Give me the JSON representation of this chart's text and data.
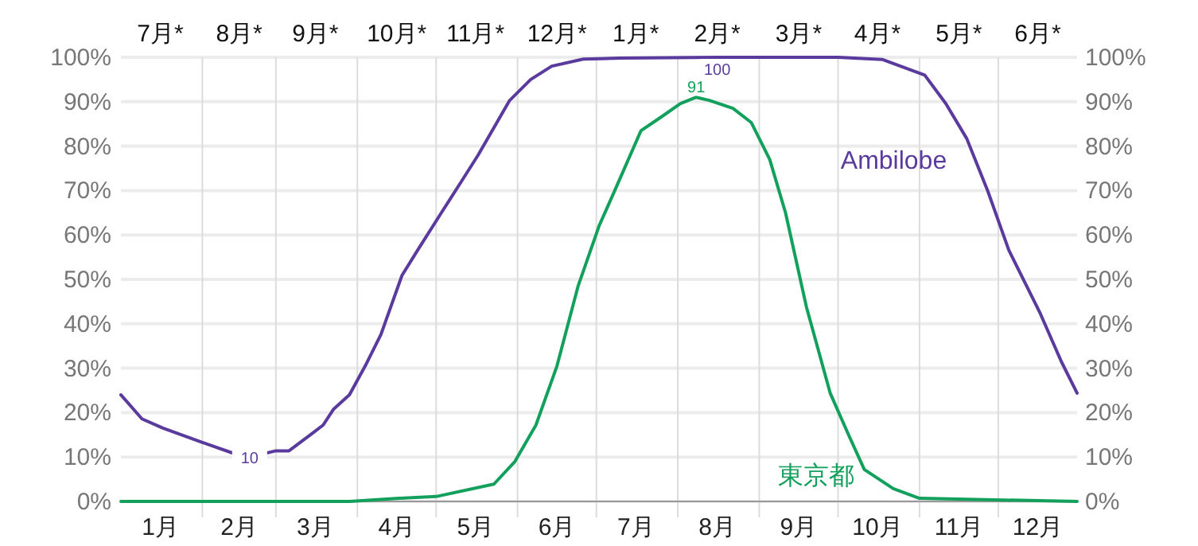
{
  "chart_data": {
    "type": "line",
    "xlim": [
      "--01-01",
      "--12-31"
    ],
    "xticks": [
      {
        "value": "--02-01",
        "label": null
      },
      {
        "value": "--03-01",
        "label": null
      },
      {
        "value": "--04-01",
        "label": null
      },
      {
        "value": "--05-01",
        "label": null
      },
      {
        "value": "--06-01",
        "label": null
      },
      {
        "value": "--07-01",
        "label": null
      },
      {
        "value": "--08-01",
        "label": null
      },
      {
        "value": "--09-01",
        "label": null
      },
      {
        "value": "--10-01",
        "label": null
      },
      {
        "value": "--11-01",
        "label": null
      },
      {
        "value": "--12-01",
        "label": null
      },
      {
        "value": "--01-16",
        "label": "1月"
      },
      {
        "value": "--02-15",
        "label": "2月"
      },
      {
        "value": "--03-16",
        "label": "3月"
      },
      {
        "value": "--04-16",
        "label": "4月"
      },
      {
        "value": "--05-16",
        "label": "5月"
      },
      {
        "value": "--06-16",
        "label": "6月"
      },
      {
        "value": "--07-16",
        "label": "7月"
      },
      {
        "value": "--08-16",
        "label": "8月"
      },
      {
        "value": "--09-16",
        "label": "9月"
      },
      {
        "value": "--10-16",
        "label": "10月"
      },
      {
        "value": "--11-16",
        "label": "11月"
      },
      {
        "value": "--12-16",
        "label": "12月"
      }
    ],
    "x2lim": [
      "--01-01",
      "--12-31"
    ],
    "x2ticks": [
      {
        "value": "--01-16",
        "label": "7月*"
      },
      {
        "value": "--02-15",
        "label": "8月*"
      },
      {
        "value": "--03-16",
        "label": "9月*"
      },
      {
        "value": "--04-16",
        "label": "10月*"
      },
      {
        "value": "--05-16",
        "label": "11月*"
      },
      {
        "value": "--06-16",
        "label": "12月*"
      },
      {
        "value": "--07-16",
        "label": "1月*"
      },
      {
        "value": "--08-16",
        "label": "2月*"
      },
      {
        "value": "--09-16",
        "label": "3月*"
      },
      {
        "value": "--10-16",
        "label": "4月*"
      },
      {
        "value": "--11-16",
        "label": "5月*"
      },
      {
        "value": "--12-16",
        "label": "6月*"
      }
    ],
    "ylim": [
      0,
      100
    ],
    "yticks": [
      {
        "value": 0,
        "label": "0%"
      },
      {
        "value": 10,
        "label": "10%"
      },
      {
        "value": 20,
        "label": "20%"
      },
      {
        "value": 30,
        "label": "30%"
      },
      {
        "value": 40,
        "label": "40%"
      },
      {
        "value": 50,
        "label": "50%"
      },
      {
        "value": 60,
        "label": "60%"
      },
      {
        "value": 70,
        "label": "70%"
      },
      {
        "value": 80,
        "label": "80%"
      },
      {
        "value": 90,
        "label": "90%"
      },
      {
        "value": 100,
        "label": "100%"
      }
    ],
    "y2lim": [
      0,
      100
    ],
    "y2ticks": [
      {
        "value": 0,
        "label": "0%"
      },
      {
        "value": 10,
        "label": "10%"
      },
      {
        "value": 20,
        "label": "20%"
      },
      {
        "value": 30,
        "label": "30%"
      },
      {
        "value": 40,
        "label": "40%"
      },
      {
        "value": 50,
        "label": "50%"
      },
      {
        "value": 60,
        "label": "60%"
      },
      {
        "value": 70,
        "label": "70%"
      },
      {
        "value": 80,
        "label": "80%"
      },
      {
        "value": 90,
        "label": "90%"
      },
      {
        "value": 100,
        "label": "100%"
      }
    ],
    "grid": true,
    "series": [
      {
        "name": "Ambilobe",
        "color": "#5b3a9e",
        "x": [
          "--01-01",
          "--01-09",
          "--01-17",
          "--02-01",
          "--02-13",
          "--02-19",
          "--03-01",
          "--03-06",
          "--03-15",
          "--03-19",
          "--03-23",
          "--03-29",
          "--04-04",
          "--04-10",
          "--04-18",
          "--04-24",
          "--05-03",
          "--05-11",
          "--05-17",
          "--05-29",
          "--06-06",
          "--06-14",
          "--06-26",
          "--07-10",
          "--08-16",
          "--10-01",
          "--10-18",
          "--11-03",
          "--11-11",
          "--11-19",
          "--11-27",
          "--12-05",
          "--12-17",
          "--12-25",
          "--12-31"
        ],
        "values": [
          24,
          18.6,
          16.5,
          13.3,
          10.8,
          10,
          11.4,
          11.4,
          15.4,
          17.2,
          20.8,
          24,
          30.5,
          37.6,
          50.9,
          56.6,
          65,
          72.4,
          78,
          90.3,
          95,
          98,
          99.6,
          99.8,
          100,
          100,
          99.5,
          96,
          89.6,
          81.7,
          69.9,
          56.6,
          42.3,
          31.5,
          24.4
        ]
      },
      {
        "name": "東京都",
        "color": "#12a05c",
        "x": [
          "--01-01",
          "--03-29",
          "--04-17",
          "--05-01",
          "--05-23",
          "--05-31",
          "--06-08",
          "--06-16",
          "--06-24",
          "--07-02",
          "--07-08",
          "--07-18",
          "--07-26",
          "--08-02",
          "--08-08",
          "--08-13",
          "--08-22",
          "--08-29",
          "--09-05",
          "--09-11",
          "--09-19",
          "--09-28",
          "--10-05",
          "--10-11",
          "--10-22",
          "--11-01",
          "--12-31"
        ],
        "values": [
          0,
          0,
          0.7,
          1.1,
          3.9,
          9,
          17.2,
          30.5,
          48.4,
          62,
          70,
          83.5,
          86.7,
          89.6,
          91,
          90.3,
          88.5,
          85.3,
          77,
          65,
          43.7,
          24.4,
          15,
          7.2,
          2.9,
          0.7,
          0
        ]
      }
    ],
    "annotations": [
      {
        "text": "10",
        "x": "--02-19",
        "y": 10
      },
      {
        "text": "100",
        "x": "--08-16",
        "y": 100
      },
      {
        "text": "91",
        "x": "--08-08",
        "y": 91
      }
    ]
  }
}
